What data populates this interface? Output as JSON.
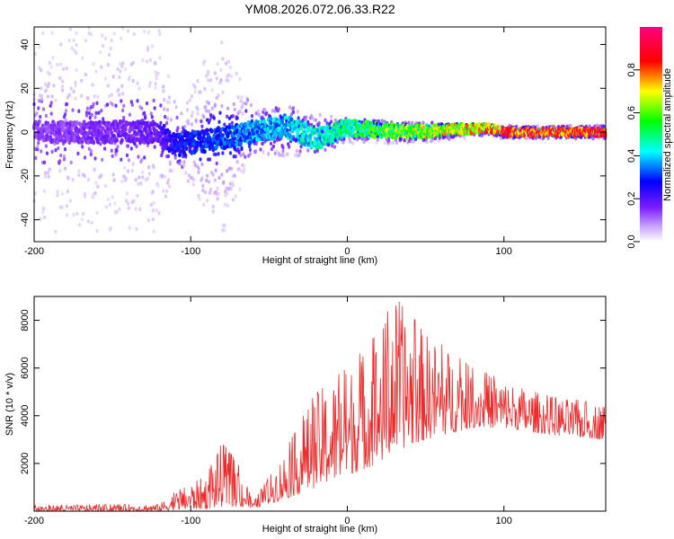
{
  "chart_data": [
    {
      "type": "heatmap",
      "title": "YM08.2026.072.06.33.R22",
      "xlabel": "Height of straight line (km)",
      "ylabel": "Frequency (Hz)",
      "xlim": [
        -200,
        165
      ],
      "ylim": [
        -50,
        48
      ],
      "xticks": [
        -200,
        -100,
        0,
        100
      ],
      "yticks": [
        -40,
        -20,
        0,
        20,
        40
      ],
      "colorbar": {
        "label": "Normalized spectral amplitude",
        "range": [
          0,
          1
        ],
        "ticks": [
          0.0,
          0.2,
          0.4,
          0.6,
          0.8
        ],
        "colors": [
          "#ffffff",
          "#9b30ff",
          "#0000ff",
          "#00ffff",
          "#00ff00",
          "#ffff00",
          "#ff0000",
          "#ff0080"
        ]
      },
      "spread_envelope": [
        {
          "x": -200,
          "halfwidth": 48
        },
        {
          "x": -120,
          "halfwidth": 48
        },
        {
          "x": -110,
          "halfwidth": 14
        },
        {
          "x": -80,
          "halfwidth": 48
        },
        {
          "x": -60,
          "halfwidth": 10
        },
        {
          "x": -40,
          "halfwidth": 12
        },
        {
          "x": 0,
          "halfwidth": 6
        },
        {
          "x": 100,
          "halfwidth": 3
        },
        {
          "x": 165,
          "halfwidth": 3
        }
      ],
      "peak_band": [
        {
          "x": -200,
          "center": 0,
          "amplitude": 0.15
        },
        {
          "x": -120,
          "center": 0,
          "amplitude": 0.2
        },
        {
          "x": -110,
          "center": -6,
          "amplitude": 0.3
        },
        {
          "x": -80,
          "center": -3,
          "amplitude": 0.35
        },
        {
          "x": -40,
          "center": 3,
          "amplitude": 0.45
        },
        {
          "x": -20,
          "center": -3,
          "amplitude": 0.5
        },
        {
          "x": 0,
          "center": 2,
          "amplitude": 0.55
        },
        {
          "x": 40,
          "center": 0,
          "amplitude": 0.7
        },
        {
          "x": 90,
          "center": 2,
          "amplitude": 0.8
        },
        {
          "x": 100,
          "center": 0,
          "amplitude": 0.95
        },
        {
          "x": 165,
          "center": 0,
          "amplitude": 0.95
        }
      ]
    },
    {
      "type": "line",
      "title": "",
      "xlabel": "Height of straight line (km)",
      "ylabel": "SNR (10 * v/v)",
      "xlim": [
        -200,
        165
      ],
      "ylim": [
        0,
        9000
      ],
      "xticks": [
        -200,
        -100,
        0,
        100
      ],
      "yticks": [
        2000,
        4000,
        6000,
        8000
      ],
      "series": [
        {
          "name": "SNR",
          "color": "#ee2a2a",
          "envelope": [
            {
              "x": -200,
              "low": 0,
              "high": 250
            },
            {
              "x": -120,
              "low": 0,
              "high": 300
            },
            {
              "x": -110,
              "low": 50,
              "high": 800
            },
            {
              "x": -90,
              "low": 100,
              "high": 1500
            },
            {
              "x": -80,
              "low": 200,
              "high": 2900
            },
            {
              "x": -70,
              "low": 200,
              "high": 2000
            },
            {
              "x": -60,
              "low": 100,
              "high": 400
            },
            {
              "x": -40,
              "low": 500,
              "high": 2500
            },
            {
              "x": -20,
              "low": 1000,
              "high": 5000
            },
            {
              "x": 0,
              "low": 1500,
              "high": 6000
            },
            {
              "x": 20,
              "low": 2000,
              "high": 7500
            },
            {
              "x": 30,
              "low": 2500,
              "high": 9000
            },
            {
              "x": 50,
              "low": 3000,
              "high": 7500
            },
            {
              "x": 80,
              "low": 3500,
              "high": 6000
            },
            {
              "x": 100,
              "low": 3500,
              "high": 5500
            },
            {
              "x": 130,
              "low": 3200,
              "high": 4800
            },
            {
              "x": 165,
              "low": 3000,
              "high": 4500
            }
          ]
        }
      ]
    }
  ]
}
